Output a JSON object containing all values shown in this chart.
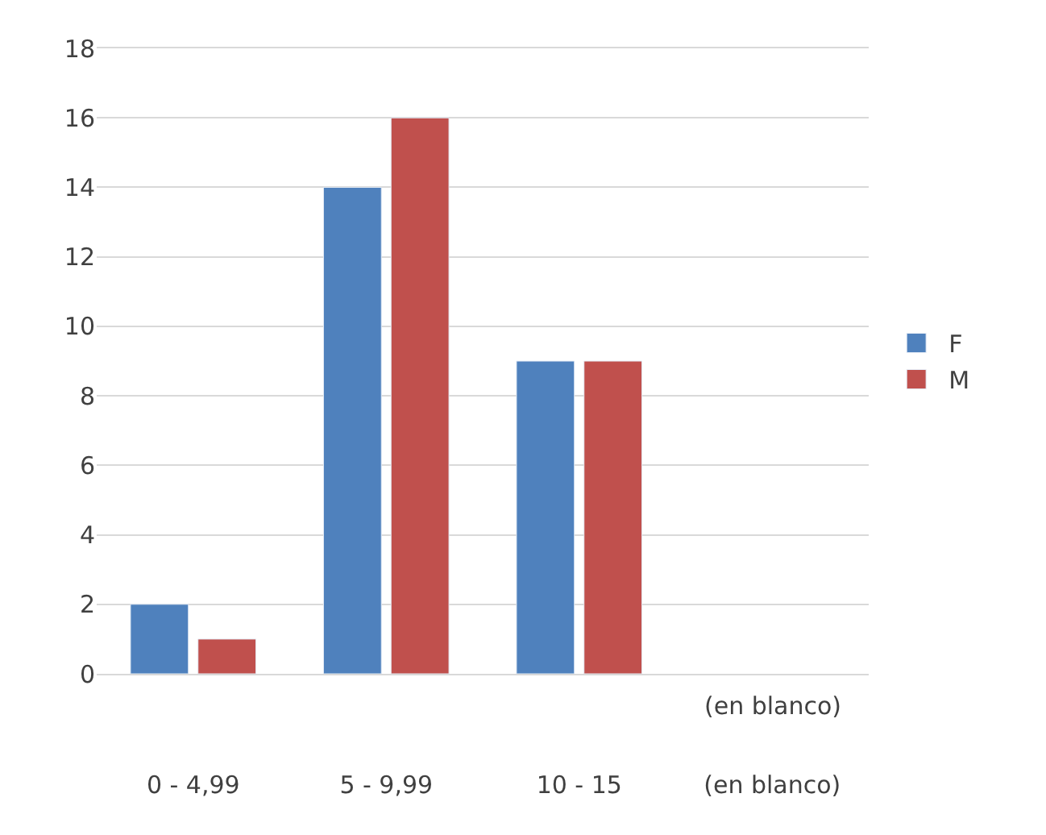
{
  "chart_data": {
    "type": "bar",
    "categories": [
      "0 - 4,99",
      "5 - 9,99",
      "10 - 15",
      "(en blanco)"
    ],
    "series": [
      {
        "name": "F",
        "color": "#4f81bd",
        "values": [
          2,
          14,
          9,
          null
        ]
      },
      {
        "name": "M",
        "color": "#c0504d",
        "values": [
          1,
          16,
          9,
          null
        ]
      }
    ],
    "annotations": [
      "(en blanco)"
    ],
    "ylim": [
      0,
      18
    ],
    "yticks": [
      0,
      2,
      4,
      6,
      8,
      10,
      12,
      14,
      16,
      18
    ],
    "grid": "y",
    "legend": "right"
  }
}
